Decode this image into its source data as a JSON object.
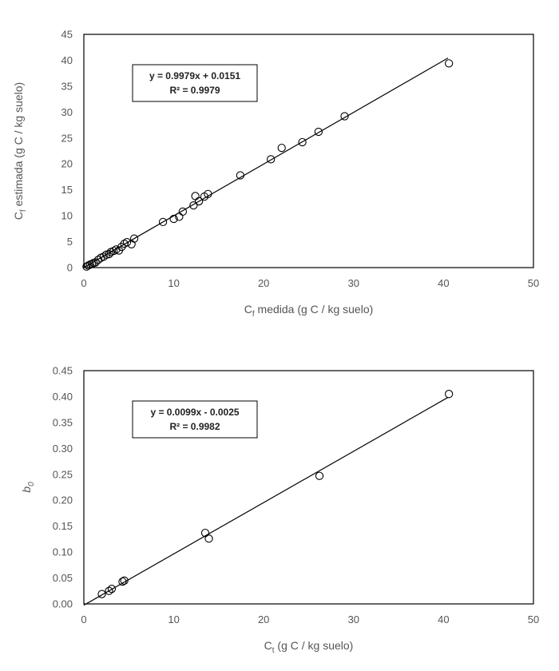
{
  "chart_data": [
    {
      "type": "scatter",
      "title": "",
      "xlabel": {
        "main": "C",
        "sub": "f",
        "rest": " medida (g C / kg suelo)"
      },
      "ylabel": {
        "main": "C",
        "sub": "f",
        "rest": " estimada (g C / kg suelo)"
      },
      "xlim": [
        0,
        50
      ],
      "ylim": [
        0,
        45
      ],
      "x_ticks": [
        "0",
        "10",
        "20",
        "30",
        "40",
        "50"
      ],
      "y_ticks": [
        "0",
        "5",
        "10",
        "15",
        "20",
        "25",
        "30",
        "35",
        "40",
        "45"
      ],
      "grid": false,
      "legend": "none",
      "trendline": {
        "slope": 0.9979,
        "intercept": 0.0151,
        "x_range": [
          0,
          40.5
        ]
      },
      "annotation": {
        "line1": "y = 0.9979x + 0.0151",
        "line2": "R² = 0.9979"
      },
      "points": [
        [
          0.3,
          0.2
        ],
        [
          0.5,
          0.4
        ],
        [
          0.7,
          0.6
        ],
        [
          0.9,
          0.7
        ],
        [
          1.1,
          0.9
        ],
        [
          1.3,
          1.0
        ],
        [
          1.6,
          1.5
        ],
        [
          1.9,
          1.9
        ],
        [
          2.2,
          2.1
        ],
        [
          2.5,
          2.5
        ],
        [
          2.8,
          2.6
        ],
        [
          3.0,
          3.0
        ],
        [
          3.3,
          3.2
        ],
        [
          3.6,
          3.5
        ],
        [
          3.9,
          3.3
        ],
        [
          4.2,
          4.0
        ],
        [
          4.5,
          4.6
        ],
        [
          4.8,
          4.9
        ],
        [
          5.3,
          4.5
        ],
        [
          5.6,
          5.6
        ],
        [
          8.8,
          8.8
        ],
        [
          10.0,
          9.4
        ],
        [
          10.6,
          9.8
        ],
        [
          11.0,
          10.8
        ],
        [
          12.2,
          12.0
        ],
        [
          12.4,
          13.8
        ],
        [
          12.8,
          12.8
        ],
        [
          13.4,
          13.7
        ],
        [
          13.8,
          14.2
        ],
        [
          17.4,
          17.8
        ],
        [
          20.8,
          20.9
        ],
        [
          22.0,
          23.1
        ],
        [
          24.3,
          24.2
        ],
        [
          26.1,
          26.2
        ],
        [
          29.0,
          29.2
        ],
        [
          40.6,
          39.4
        ]
      ]
    },
    {
      "type": "scatter",
      "title": "",
      "xlabel": {
        "main": "C",
        "sub": "t",
        "rest": " (g C / kg suelo)"
      },
      "ylabel": {
        "main": "b",
        "sub": "0",
        "rest": ""
      },
      "xlim": [
        0,
        50
      ],
      "ylim": [
        0,
        0.45
      ],
      "x_ticks": [
        "0",
        "10",
        "20",
        "30",
        "40",
        "50"
      ],
      "y_ticks": [
        "0.00",
        "0.05",
        "0.10",
        "0.15",
        "0.20",
        "0.25",
        "0.30",
        "0.35",
        "0.40",
        "0.45"
      ],
      "grid": false,
      "legend": "none",
      "trendline": {
        "slope": 0.0099,
        "intercept": -0.0025,
        "x_range": [
          0,
          40.5
        ]
      },
      "annotation": {
        "line1": "y = 0.0099x - 0.0025",
        "line2": "R² = 0.9982"
      },
      "points": [
        [
          2.0,
          0.019
        ],
        [
          2.8,
          0.025
        ],
        [
          3.1,
          0.029
        ],
        [
          4.3,
          0.043
        ],
        [
          4.5,
          0.045
        ],
        [
          13.5,
          0.137
        ],
        [
          13.9,
          0.126
        ],
        [
          26.2,
          0.247
        ],
        [
          40.6,
          0.405
        ]
      ]
    }
  ]
}
